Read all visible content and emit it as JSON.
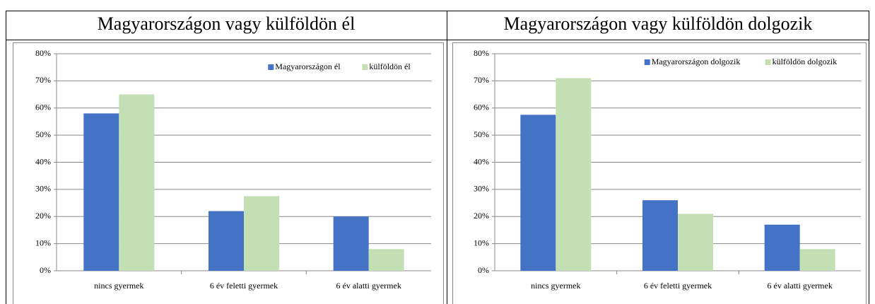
{
  "chart_data": [
    {
      "type": "bar",
      "title": "Magyarországon vagy külföldön él",
      "categories": [
        "nincs gyermek",
        "6 év feletti gyermek",
        "6 év alatti gyermek"
      ],
      "series": [
        {
          "name": "Magyarországon él",
          "color": "#4472c4",
          "values": [
            58,
            22,
            20
          ]
        },
        {
          "name": "külföldön él",
          "color": "#c3e0b4",
          "values": [
            65,
            27.5,
            8
          ]
        }
      ],
      "ylim": [
        0,
        80
      ],
      "yticks": [
        {
          "value": 0,
          "label": "0%"
        },
        {
          "value": 10,
          "label": "10%"
        },
        {
          "value": 20,
          "label": "20%"
        },
        {
          "value": 30,
          "label": "30%"
        },
        {
          "value": 40,
          "label": "40%"
        },
        {
          "value": 50,
          "label": "50%"
        },
        {
          "value": 60,
          "label": "60%"
        },
        {
          "value": 70,
          "label": "70%"
        },
        {
          "value": 80,
          "label": "80%"
        }
      ],
      "grid": true,
      "legend": "upper right"
    },
    {
      "type": "bar",
      "title": "Magyarországon vagy külföldön dolgozik",
      "categories": [
        "nincs gyermek",
        "6 év feletti gyermek",
        "6 év alatti gyermek"
      ],
      "series": [
        {
          "name": "Magyarországon dolgozik",
          "color": "#4472c4",
          "values": [
            57.5,
            26,
            17
          ]
        },
        {
          "name": "külföldön dolgozik",
          "color": "#c3e0b4",
          "values": [
            71,
            21,
            8
          ]
        }
      ],
      "ylim": [
        0,
        80
      ],
      "yticks": [
        {
          "value": 0,
          "label": "0%"
        },
        {
          "value": 10,
          "label": "10%"
        },
        {
          "value": 20,
          "label": "20%"
        },
        {
          "value": 30,
          "label": "30%"
        },
        {
          "value": 40,
          "label": "40%"
        },
        {
          "value": 50,
          "label": "50%"
        },
        {
          "value": 60,
          "label": "60%"
        },
        {
          "value": 70,
          "label": "70%"
        },
        {
          "value": 80,
          "label": "80%"
        }
      ],
      "grid": true,
      "legend": "upper right"
    }
  ]
}
